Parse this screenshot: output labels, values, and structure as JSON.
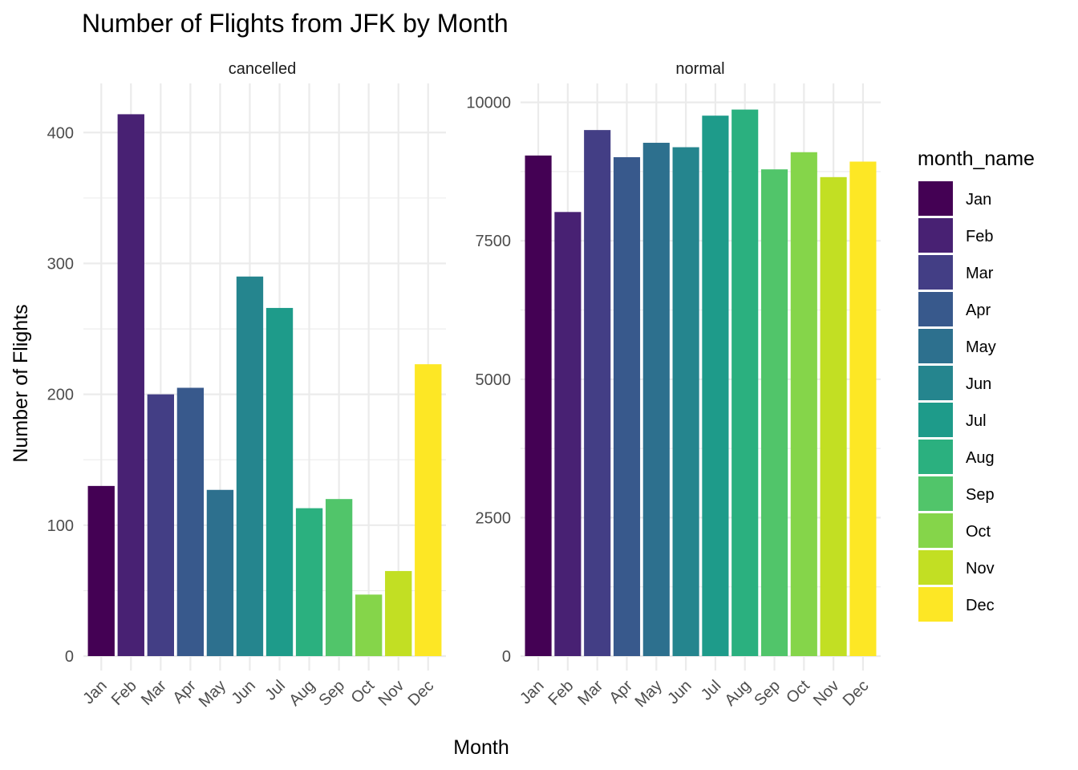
{
  "chart_data": {
    "type": "bar",
    "title": "Number of Flights from JFK by Month",
    "xlabel": "Month",
    "ylabel": "Number of Flights",
    "categories": [
      "Jan",
      "Feb",
      "Mar",
      "Apr",
      "May",
      "Jun",
      "Jul",
      "Aug",
      "Sep",
      "Oct",
      "Nov",
      "Dec"
    ],
    "colors": [
      "#440154",
      "#482173",
      "#433E85",
      "#38598C",
      "#2D708E",
      "#25858E",
      "#1E9B8A",
      "#2BB07F",
      "#51C56A",
      "#85D54A",
      "#C2DF23",
      "#FDE725"
    ],
    "grid": true,
    "legend": {
      "title": "month_name",
      "position": "right",
      "entries": [
        "Jan",
        "Feb",
        "Mar",
        "Apr",
        "May",
        "Jun",
        "Jul",
        "Aug",
        "Sep",
        "Oct",
        "Nov",
        "Dec"
      ]
    },
    "facets": [
      {
        "name": "cancelled",
        "values": [
          130,
          414,
          200,
          205,
          127,
          290,
          266,
          113,
          120,
          47,
          65,
          223
        ],
        "ylim": [
          0,
          440
        ],
        "yticks": [
          0,
          100,
          200,
          300,
          400
        ]
      },
      {
        "name": "normal",
        "values": [
          9040,
          8020,
          9500,
          9010,
          9270,
          9190,
          9760,
          9870,
          8790,
          9100,
          8650,
          8930
        ],
        "ylim": [
          0,
          10400
        ],
        "yticks": [
          0,
          2500,
          5000,
          7500,
          10000
        ]
      }
    ]
  }
}
